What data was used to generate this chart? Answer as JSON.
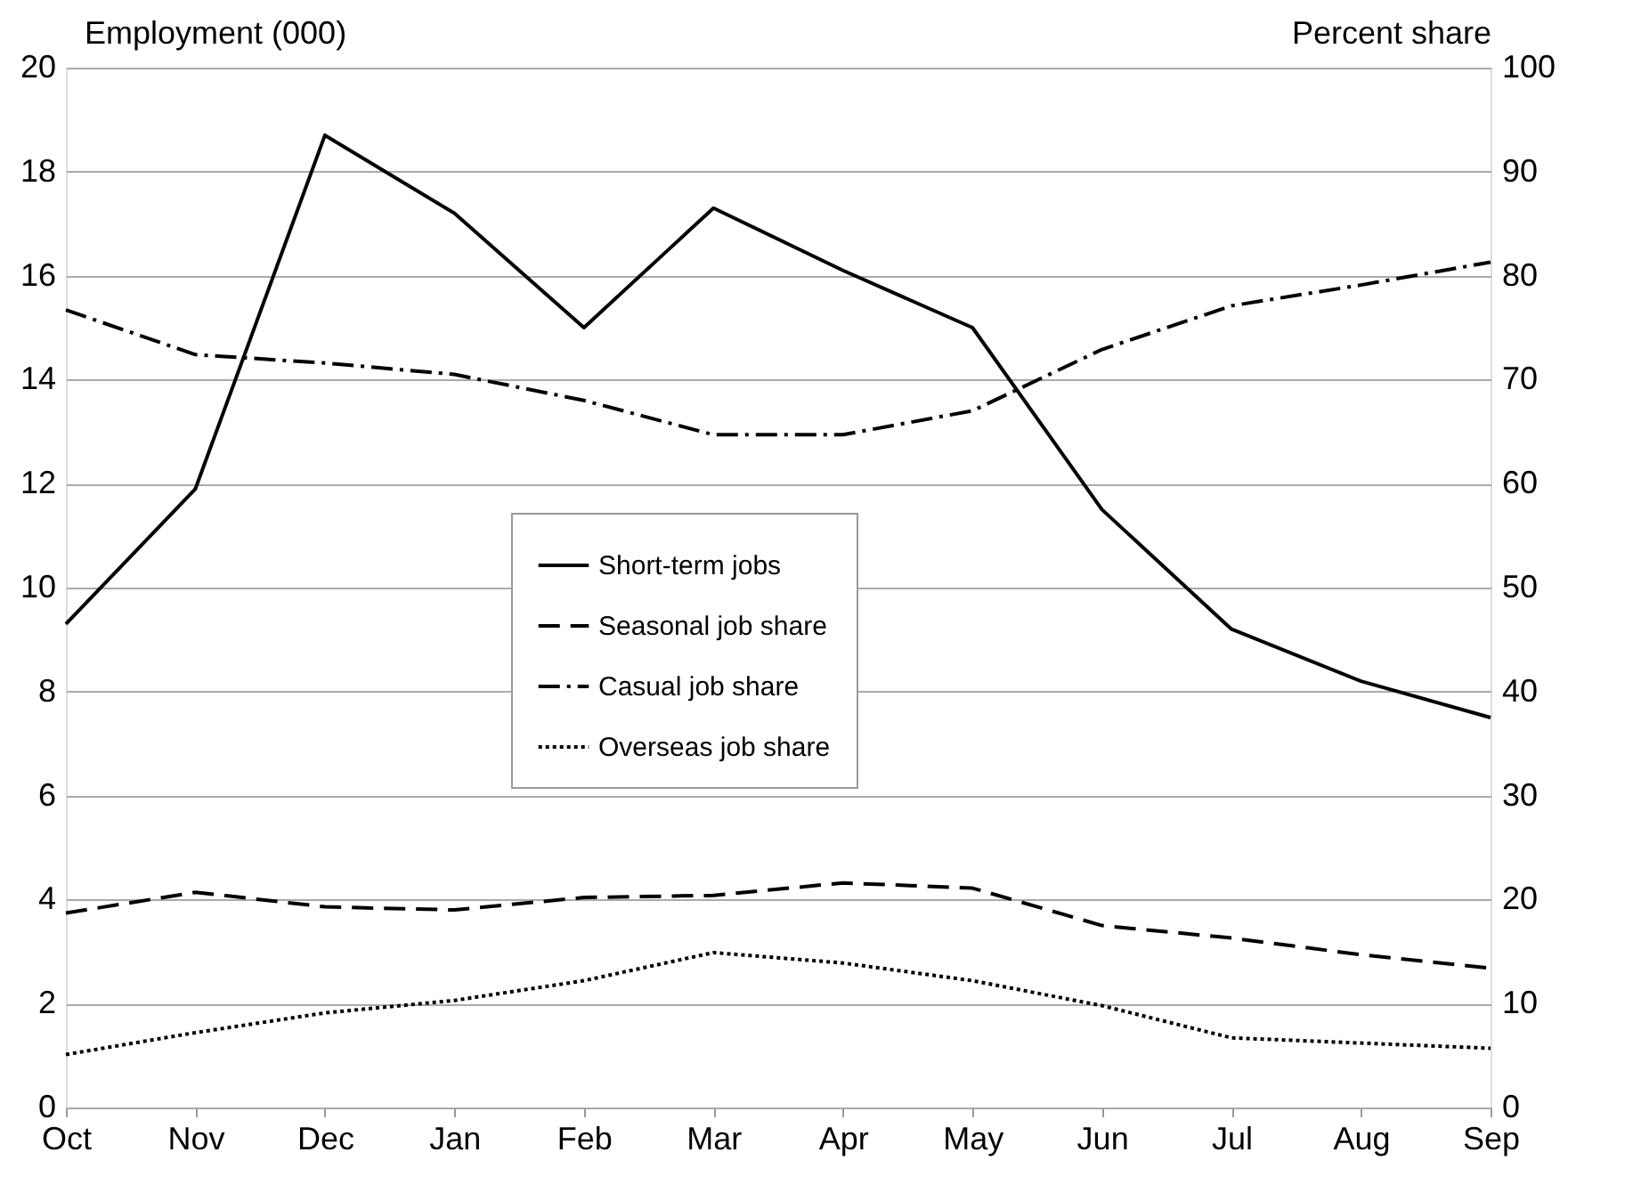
{
  "chart_data": {
    "type": "line",
    "ylabel": "Employment (000)",
    "y2label": "Percent share",
    "categories": [
      "Oct",
      "Nov",
      "Dec",
      "Jan",
      "Feb",
      "Mar",
      "Apr",
      "May",
      "Jun",
      "Jul",
      "Aug",
      "Sep"
    ],
    "series": [
      {
        "name": "Short-term jobs",
        "color": "#000000",
        "line_style": "solid",
        "values": [
          9.3,
          11.9,
          18.7,
          17.2,
          15.0,
          17.3,
          16.1,
          15.0,
          11.5,
          9.2,
          8.2,
          7.5
        ]
      },
      {
        "name": "Seasonal job share",
        "color": "#000000",
        "line_style": "dashed",
        "axis": "y2",
        "values": [
          18.7,
          20.7,
          19.3,
          19.0,
          20.2,
          20.4,
          21.6,
          21.1,
          17.5,
          16.3,
          14.7,
          13.4
        ]
      },
      {
        "name": "Casual job share",
        "color": "#000000",
        "line_style": "dashdot",
        "axis": "y2",
        "values": [
          76.7,
          72.4,
          71.6,
          70.5,
          68.0,
          64.7,
          64.7,
          67.0,
          72.9,
          77.1,
          79.1,
          81.3
        ]
      },
      {
        "name": "Overseas job share",
        "color": "#000000",
        "line_style": "dotted",
        "axis": "y2",
        "values": [
          5.1,
          7.2,
          9.1,
          10.3,
          12.2,
          14.9,
          13.9,
          12.2,
          9.8,
          6.7,
          6.2,
          5.7
        ]
      }
    ],
    "ylim": [
      0,
      20
    ],
    "yticks": [
      0,
      2,
      4,
      6,
      8,
      10,
      12,
      14,
      16,
      18,
      20
    ],
    "y2lim": [
      0,
      100
    ],
    "y2ticks": [
      0,
      10,
      20,
      30,
      40,
      50,
      60,
      70,
      80,
      90,
      100
    ],
    "grid": "y",
    "legend": "center",
    "marker": "none"
  }
}
